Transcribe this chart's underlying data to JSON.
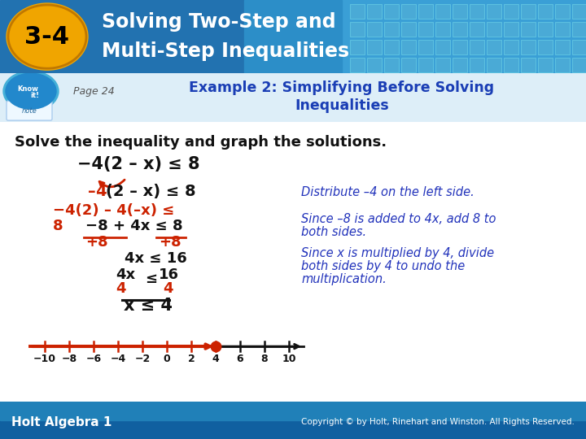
{
  "header_bg_dark": "#2272b0",
  "header_bg_light": "#3a9fd6",
  "header_text_color": "#ffffff",
  "badge_color": "#f0a500",
  "badge_text": "3-4",
  "badge_text_color": "#000000",
  "subheader_bg": "#ddeef8",
  "subheader_text_color": "#1a3eb5",
  "page_text": "Page 24",
  "body_bg": "#ffffff",
  "footer_bg_top": "#2080b5",
  "footer_bg_bot": "#1060a0",
  "footer_left": "Holt Algebra 1",
  "footer_right": "Copyright © by Holt, Rinehart and Winston. All Rights Reserved.",
  "footer_text_color": "#ffffff",
  "red_color": "#cc2200",
  "blue_color": "#2233bb",
  "black_color": "#111111",
  "number_line_min": -10,
  "number_line_max": 10,
  "number_line_solution": 4
}
